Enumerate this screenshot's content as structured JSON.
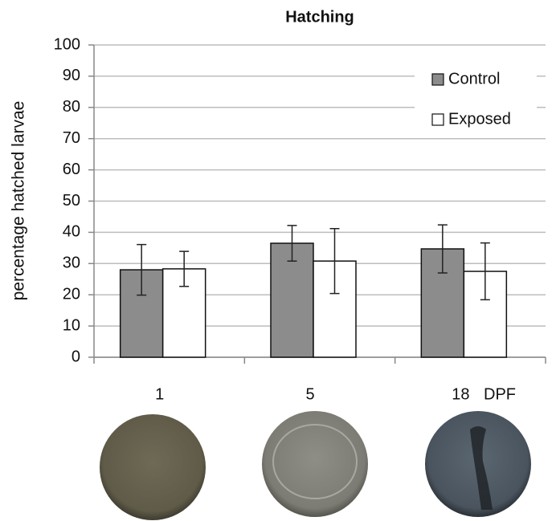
{
  "chart_data": {
    "type": "bar",
    "title": "Hatching",
    "y_label": "percentage hatched  larvae",
    "x_label": "DPF",
    "categories": [
      "1",
      "5",
      "18"
    ],
    "series": [
      {
        "name": "Control",
        "color": "#8c8c8c",
        "values": [
          28.0,
          36.5,
          34.7
        ],
        "errors": [
          8.1,
          5.7,
          7.7
        ]
      },
      {
        "name": "Exposed",
        "color": "#ffffff",
        "values": [
          28.3,
          30.8,
          27.5
        ],
        "errors": [
          5.6,
          10.4,
          9.1
        ]
      }
    ],
    "ylim": [
      0,
      100
    ],
    "yticks": [
      0,
      10,
      20,
      30,
      40,
      50,
      60,
      70,
      80,
      90,
      100
    ],
    "grid": true,
    "legend": "upper right"
  }
}
